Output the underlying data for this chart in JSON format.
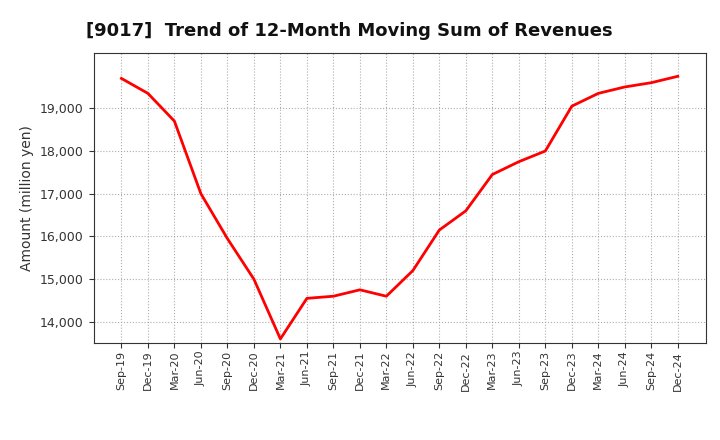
{
  "title": "[9017]  Trend of 12-Month Moving Sum of Revenues",
  "ylabel": "Amount (million yen)",
  "line_color": "#ff0000",
  "background_color": "#ffffff",
  "plot_bg_color": "#ffffff",
  "grid_color": "#999999",
  "ylim": [
    13500,
    20300
  ],
  "yticks": [
    14000,
    15000,
    16000,
    17000,
    18000,
    19000
  ],
  "labels": [
    "Sep-19",
    "Dec-19",
    "Mar-20",
    "Jun-20",
    "Sep-20",
    "Dec-20",
    "Mar-21",
    "Jun-21",
    "Sep-21",
    "Dec-21",
    "Mar-22",
    "Jun-22",
    "Sep-22",
    "Dec-22",
    "Mar-23",
    "Jun-23",
    "Sep-23",
    "Dec-23",
    "Mar-24",
    "Jun-24",
    "Sep-24",
    "Dec-24"
  ],
  "values": [
    19700,
    19350,
    18700,
    17000,
    15950,
    15000,
    13600,
    14550,
    14600,
    14750,
    14600,
    15200,
    16150,
    16600,
    17450,
    17750,
    18000,
    19050,
    19350,
    19500,
    19600,
    19750
  ],
  "title_fontsize": 13,
  "ylabel_fontsize": 10,
  "xtick_fontsize": 8,
  "ytick_fontsize": 9,
  "line_width": 2.0
}
